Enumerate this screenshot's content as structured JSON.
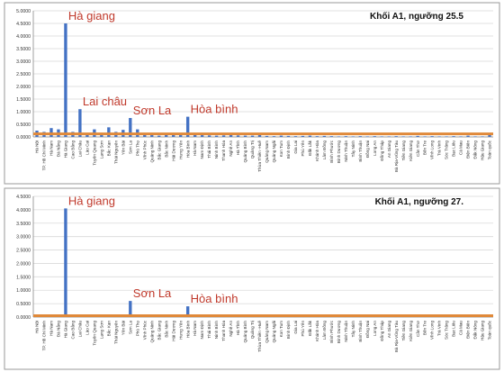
{
  "chart_data": [
    {
      "type": "bar",
      "title": "Khối A1, ngưỡng 25.5",
      "ylim": [
        0,
        5.0
      ],
      "yticks": [
        "0.0000",
        "0.5000",
        "1.0000",
        "1.5000",
        "2.0000",
        "2.5000",
        "3.0000",
        "3.5000",
        "4.0000",
        "4.5000",
        "5.0000"
      ],
      "grid": true,
      "bar_color": "#4472c4",
      "threshold_line": {
        "value": 0.12,
        "color": "#e0893a"
      },
      "annotation_color": "#c0392b",
      "categories": [
        "Hà Nội",
        "TP. Hồ Chí Minh",
        "Hà Nam",
        "Đà Nẵng",
        "Hà Giang",
        "Cao Bằng",
        "Lai Châu",
        "Lào Cai",
        "Tuyên Quang",
        "Lạng Sơn",
        "Bắc Kạn",
        "Thái Nguyên",
        "Yên Bái",
        "Sơn La",
        "Phú Thọ",
        "Vĩnh Phúc",
        "Quảng Ninh",
        "Bắc Giang",
        "Bắc Ninh",
        "Hải Dương",
        "Hưng Yên",
        "Hòa Bình",
        "Hà Nam",
        "Nam Định",
        "Thái Bình",
        "Ninh Bình",
        "Thanh Hóa",
        "Nghệ An",
        "Hà Tĩnh",
        "Quảng Bình",
        "Quảng Trị",
        "Thừa Thiên -Huế",
        "Quảng Nam",
        "Quảng Ngãi",
        "Kon Tum",
        "Bình Định",
        "Gia Lai",
        "Phú Yên",
        "Đắk Lắk",
        "Khánh Hòa",
        "Lâm Đồng",
        "Bình Phước",
        "Bình Dương",
        "Ninh Thuận",
        "Tây Ninh",
        "Bình Thuận",
        "Đồng Nai",
        "Long An",
        "Đồng Tháp",
        "An Giang",
        "Bà Rịa-Vũng Tàu",
        "Tiền Giang",
        "Kiên Giang",
        "Cần Thơ",
        "Bến Tre",
        "Vĩnh Long",
        "Trà Vinh",
        "Sóc Trăng",
        "Bạc Liêu",
        "Cà Mau",
        "Điện Biên",
        "Đắk Nông",
        "Hậu Giang",
        "Toàn quốc"
      ],
      "values": [
        0.25,
        0.2,
        0.35,
        0.3,
        4.5,
        0.2,
        1.1,
        0.12,
        0.3,
        0.1,
        0.38,
        0.2,
        0.28,
        0.75,
        0.3,
        0.1,
        0.08,
        0.05,
        0.12,
        0.1,
        0.15,
        0.8,
        0.08,
        0.07,
        0.06,
        0.05,
        0.06,
        0.08,
        0.06,
        0.05,
        0.05,
        0.12,
        0.04,
        0.03,
        0.05,
        0.04,
        0.03,
        0.04,
        0.05,
        0.03,
        0.04,
        0.03,
        0.02,
        0.03,
        0.02,
        0.03,
        0.02,
        0.03,
        0.02,
        0.02,
        0.03,
        0.02,
        0.02,
        0.04,
        0.02,
        0.03,
        0.02,
        0.02,
        0.03,
        0.02,
        0.05,
        0.02,
        0.02,
        0.12
      ],
      "annotations": [
        {
          "text": "Hà giang",
          "category": "Hà Giang"
        },
        {
          "text": "Lai châu",
          "category": "Lai Châu"
        },
        {
          "text": "Sơn La",
          "category": "Sơn La"
        },
        {
          "text": "Hòa bình",
          "category": "Hòa Bình"
        }
      ]
    },
    {
      "type": "bar",
      "title": "Khối A1, ngưỡng 27.",
      "ylim": [
        0,
        4.5
      ],
      "yticks": [
        "0.0000",
        "0.5000",
        "1.0000",
        "1.5000",
        "2.0000",
        "2.5000",
        "3.0000",
        "3.5000",
        "4.0000",
        "4.5000"
      ],
      "grid": true,
      "bar_color": "#4472c4",
      "threshold_line": {
        "value": 0.05,
        "color": "#e0893a"
      },
      "annotation_color": "#c0392b",
      "categories": [
        "Hà Nội",
        "TP. Hồ Chí Minh",
        "Hà Nam",
        "Đà Nẵng",
        "Hà Giang",
        "Cao Bằng",
        "Lai Châu",
        "Lào Cai",
        "Tuyên Quang",
        "Lạng Sơn",
        "Bắc Kạn",
        "Thái Nguyên",
        "Yên Bái",
        "Sơn La",
        "Phú Thọ",
        "Vĩnh Phúc",
        "Quảng Ninh",
        "Bắc Giang",
        "Bắc Ninh",
        "Hải Dương",
        "Hưng Yên",
        "Hòa Bình",
        "Hà Nam",
        "Nam Định",
        "Thái Bình",
        "Ninh Bình",
        "Thanh Hóa",
        "Nghệ An",
        "Hà Tĩnh",
        "Quảng Bình",
        "Quảng Trị",
        "Thừa Thiên -Huế",
        "Quảng Nam",
        "Quảng Ngãi",
        "Kon Tum",
        "Bình Định",
        "Gia Lai",
        "Phú Yên",
        "Đắk Lắk",
        "Khánh Hòa",
        "Lâm Đồng",
        "Bình Phước",
        "Bình Dương",
        "Ninh Thuận",
        "Tây Ninh",
        "Bình Thuận",
        "Đồng Nai",
        "Long An",
        "Đồng Tháp",
        "An Giang",
        "Bà Rịa-Vũng Tàu",
        "Tiền Giang",
        "Kiên Giang",
        "Cần Thơ",
        "Bến Tre",
        "Vĩnh Long",
        "Trà Vinh",
        "Sóc Trăng",
        "Bạc Liêu",
        "Cà Mau",
        "Điện Biên",
        "Đắk Nông",
        "Hậu Giang",
        "Toàn quốc"
      ],
      "values": [
        0.06,
        0.04,
        0.06,
        0.05,
        4.05,
        0.03,
        0.1,
        0.02,
        0.05,
        0.02,
        0.05,
        0.03,
        0.04,
        0.6,
        0.05,
        0.02,
        0.02,
        0.01,
        0.02,
        0.02,
        0.03,
        0.4,
        0.02,
        0.01,
        0.01,
        0.01,
        0.01,
        0.01,
        0.01,
        0.01,
        0.01,
        0.02,
        0.01,
        0.01,
        0.01,
        0.01,
        0.01,
        0.01,
        0.01,
        0.01,
        0.01,
        0.01,
        0.01,
        0.01,
        0.01,
        0.01,
        0.01,
        0.01,
        0.01,
        0.01,
        0.01,
        0.01,
        0.01,
        0.01,
        0.01,
        0.01,
        0.01,
        0.01,
        0.01,
        0.01,
        0.01,
        0.01,
        0.01,
        0.03
      ],
      "annotations": [
        {
          "text": "Hà giang",
          "category": "Hà Giang"
        },
        {
          "text": "Sơn La",
          "category": "Sơn La"
        },
        {
          "text": "Hòa bình",
          "category": "Hòa Bình"
        }
      ]
    }
  ]
}
